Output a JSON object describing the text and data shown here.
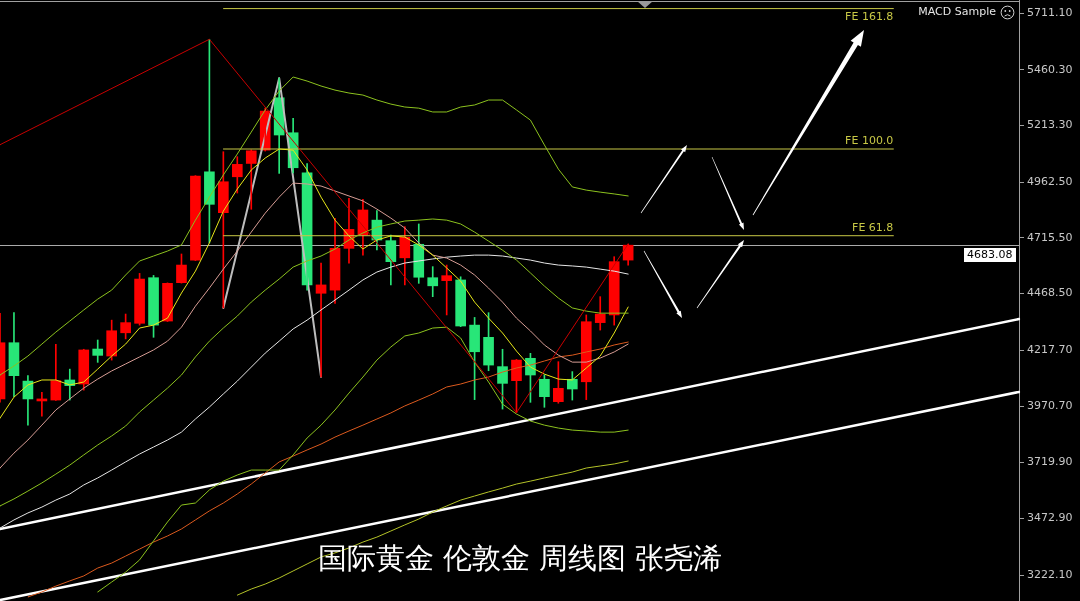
{
  "chart_data": {
    "type": "candlestick",
    "title": "国际黄金 伦敦金 周线图 张尧浠",
    "annotations": [
      "MACD Sample"
    ],
    "categories": [
      null,
      null,
      null,
      null,
      null,
      null,
      null,
      null,
      null,
      null,
      null,
      null,
      null,
      null,
      null,
      null,
      null,
      null,
      null,
      null,
      null,
      null,
      null,
      null,
      null,
      null,
      null,
      null,
      null,
      null,
      null,
      null,
      null,
      null,
      null,
      null,
      null,
      null,
      null,
      null,
      null,
      null,
      null,
      null,
      null,
      null,
      null,
      null,
      null,
      null,
      null,
      null,
      null,
      null,
      null,
      null,
      null,
      null,
      null,
      null,
      null,
      null,
      null,
      null,
      null,
      null,
      null,
      null,
      null,
      null,
      null,
      null,
      null,
      null
    ],
    "ohlc": [
      [
        4002,
        4381,
        3988,
        4251
      ],
      [
        4251,
        4384,
        4012,
        4105
      ],
      [
        4081,
        4106,
        3886,
        4002
      ],
      [
        3993,
        4031,
        3926,
        4002
      ],
      [
        3997,
        4244,
        3995,
        4083
      ],
      [
        4086,
        4134,
        3997,
        4061
      ],
      [
        4068,
        4222,
        4041,
        4219
      ],
      [
        4223,
        4263,
        4164,
        4195
      ],
      [
        4192,
        4351,
        4174,
        4304
      ],
      [
        4295,
        4378,
        4268,
        4340
      ],
      [
        4337,
        4558,
        4329,
        4533
      ],
      [
        4539,
        4549,
        4275,
        4329
      ],
      [
        4347,
        4516,
        4345,
        4514
      ],
      [
        4517,
        4644,
        4515,
        4595
      ],
      [
        4617,
        4991,
        4615,
        4989
      ],
      [
        5008,
        5595,
        4693,
        4864
      ],
      [
        4827,
        5097,
        4405,
        4964
      ],
      [
        4986,
        5075,
        4914,
        5041
      ],
      [
        5045,
        5105,
        4842,
        5101
      ],
      [
        5104,
        5290,
        5100,
        5277
      ],
      [
        5336,
        5423,
        5001,
        5171
      ],
      [
        5181,
        5245,
        5003,
        5026
      ],
      [
        5004,
        5045,
        4484,
        4507
      ],
      [
        4470,
        4604,
        4100,
        4507
      ],
      [
        4484,
        4802,
        4425,
        4669
      ],
      [
        4669,
        4890,
        4603,
        4753
      ],
      [
        4728,
        4886,
        4639,
        4839
      ],
      [
        4794,
        4836,
        4662,
        4706
      ],
      [
        4703,
        4728,
        4507,
        4610
      ],
      [
        4627,
        4765,
        4507,
        4718
      ],
      [
        4687,
        4777,
        4514,
        4541
      ],
      [
        4539,
        4588,
        4455,
        4503
      ],
      [
        4526,
        4595,
        4374,
        4548
      ],
      [
        4529,
        4543,
        4322,
        4325
      ],
      [
        4329,
        4363,
        3999,
        4211
      ],
      [
        4275,
        4384,
        4127,
        4152
      ],
      [
        4145,
        4222,
        3957,
        4071
      ],
      [
        4083,
        4177,
        3941,
        4174
      ],
      [
        4182,
        4204,
        3987,
        4108
      ],
      [
        4089,
        4108,
        3965,
        4012
      ],
      [
        3990,
        4167,
        3983,
        4049
      ],
      [
        4089,
        4123,
        3997,
        4046
      ],
      [
        4078,
        4374,
        3999,
        4344
      ],
      [
        4340,
        4455,
        4307,
        4378
      ],
      [
        4374,
        4632,
        4329,
        4610
      ],
      [
        4617,
        4688,
        4595,
        4683.08
      ],
      null,
      null,
      null,
      null,
      null,
      null,
      null,
      null,
      null,
      null,
      null,
      null,
      null,
      null,
      null,
      null,
      null,
      null,
      null,
      null,
      null,
      null,
      null,
      null,
      null,
      null,
      null,
      null
    ],
    "colors": [
      "#ff0000",
      "#28e678",
      "#28e678",
      "#ff0000",
      "#ff0000",
      "#28e678",
      "#ff0000",
      "#28e678",
      "#ff0000",
      "#ff0000",
      "#ff0000",
      "#28e678",
      "#ff0000",
      "#ff0000",
      "#ff0000",
      "#28e678",
      "#ff0000",
      "#ff0000",
      "#ff0000",
      "#ff0000",
      "#28e678",
      "#28e678",
      "#28e678",
      "#ff0000",
      "#ff0000",
      "#ff0000",
      "#ff0000",
      "#28e678",
      "#28e678",
      "#ff0000",
      "#28e678",
      "#28e678",
      "#ff0000",
      "#28e678",
      "#28e678",
      "#28e678",
      "#28e678",
      "#ff0000",
      "#28e678",
      "#28e678",
      "#ff0000",
      "#28e678",
      "#ff0000",
      "#ff0000",
      "#ff0000",
      "#ff0000",
      null,
      null,
      null,
      null,
      null,
      null,
      null,
      null,
      null,
      null,
      null,
      null,
      null,
      null,
      null,
      null,
      null,
      null,
      null,
      null,
      null,
      null,
      null,
      null,
      null,
      null,
      null,
      null
    ],
    "ylim": [
      3107,
      5769
    ],
    "yticks": [
      {
        "value": 5711.1,
        "label": "5711.10"
      },
      {
        "value": 5460.3,
        "label": "5460.30"
      },
      {
        "value": 5213.3,
        "label": "5213.30"
      },
      {
        "value": 4962.5,
        "label": "4962.50"
      },
      {
        "value": 4715.5,
        "label": "4715.50"
      },
      {
        "value": 4468.5,
        "label": "4468.50"
      },
      {
        "value": 4217.7,
        "label": "4217.70"
      },
      {
        "value": 3970.7,
        "label": "3970.70"
      },
      {
        "value": 3719.9,
        "label": "3719.90"
      },
      {
        "value": 3472.9,
        "label": "3472.90"
      },
      {
        "value": 3222.1,
        "label": "3222.10"
      }
    ],
    "tick_labels": "y",
    "grid": false,
    "legend": false,
    "ref_lines": [
      {
        "axis": "y",
        "value": 4683.08,
        "label": "4683.08",
        "color": "#aaaaaa"
      }
    ],
    "series": [
      {
        "type": "line",
        "color": "#c80000",
        "values": [
          5128,
          null,
          null,
          null,
          null,
          null,
          null,
          null,
          null,
          null,
          null,
          null,
          null,
          null,
          null,
          5595,
          null,
          null,
          null,
          null,
          null,
          null,
          null,
          null,
          null,
          null,
          null,
          null,
          null,
          null,
          null,
          null,
          null,
          null,
          null,
          null,
          null,
          3941,
          null,
          null,
          null,
          null,
          null,
          null,
          null,
          4688,
          null,
          null,
          null,
          null,
          null,
          null,
          null,
          null,
          null,
          null,
          null,
          null,
          null,
          null,
          null,
          null,
          null,
          null,
          null,
          null,
          null,
          null,
          null,
          null,
          null,
          null,
          null,
          null
        ]
      },
      {
        "type": "line",
        "color": "#bdbdbd",
        "values": [
          null,
          null,
          null,
          null,
          null,
          null,
          null,
          null,
          null,
          null,
          null,
          null,
          null,
          null,
          null,
          null,
          4405,
          null,
          null,
          null,
          5423,
          null,
          null,
          4100,
          null,
          null,
          null,
          null,
          null,
          null,
          null,
          null,
          null,
          null,
          null,
          null,
          null,
          null,
          null,
          null,
          null,
          null,
          null,
          null,
          null,
          null,
          null,
          null,
          null,
          null,
          null,
          null,
          null,
          null,
          null,
          null,
          null,
          null,
          null,
          null,
          null,
          null,
          null,
          null,
          null,
          null,
          null,
          null,
          null,
          null,
          null,
          null,
          null,
          null
        ]
      },
      {
        "type": "line",
        "color": "#8cc21e",
        "values": [
          4108,
          4148,
          4192,
          4245,
          4298,
          4347,
          4396,
          4444,
          4484,
          4551,
          4613,
          4635,
          4657,
          4684,
          4794,
          4896,
          4994,
          5087,
          5184,
          5282,
          5366,
          5428,
          5410,
          5388,
          5370,
          5357,
          5348,
          5326,
          5308,
          5295,
          5290,
          5273,
          5273,
          5295,
          5304,
          5326,
          5326,
          5282,
          5237,
          5127,
          5020,
          4941,
          4927,
          4918,
          4910,
          4901,
          null,
          null,
          null,
          null,
          null,
          null,
          null,
          null,
          null,
          null,
          null,
          null,
          null,
          null,
          null,
          null,
          null,
          null,
          null,
          null,
          null,
          null,
          null,
          null,
          null,
          null,
          null,
          null
        ]
      },
      {
        "type": "line",
        "color": "#8cc21e",
        "values": [
          3528,
          3559,
          3594,
          3630,
          3669,
          3709,
          3754,
          3798,
          3838,
          3882,
          3944,
          3997,
          4050,
          4108,
          4188,
          4258,
          4316,
          4369,
          4431,
          4484,
          4533,
          4586,
          4613,
          4635,
          4666,
          4706,
          4737,
          4763,
          4777,
          4790,
          4794,
          4799,
          4794,
          4777,
          4741,
          4701,
          4661,
          4617,
          4560,
          4502,
          4449,
          4405,
          4391,
          4382,
          4382,
          4382,
          null,
          null,
          null,
          null,
          null,
          null,
          null,
          null,
          null,
          null,
          null,
          null,
          null,
          null,
          null,
          null,
          null,
          null,
          null,
          null,
          null,
          null,
          null,
          null,
          null,
          null,
          null,
          null
        ]
      },
      {
        "type": "line",
        "color": "#8cc21e",
        "values": [
          null,
          null,
          null,
          null,
          null,
          null,
          null,
          3147,
          3191,
          3235,
          3289,
          3373,
          3457,
          3532,
          3541,
          3599,
          3638,
          3665,
          3687,
          3687,
          3687,
          3754,
          3829,
          3886,
          3953,
          4028,
          4099,
          4174,
          4232,
          4281,
          4294,
          4316,
          4320,
          4272,
          4165,
          4077,
          3979,
          3935,
          3904,
          3886,
          3873,
          3864,
          3860,
          3855,
          3855,
          3864,
          null,
          null,
          null,
          null,
          null,
          null,
          null,
          null,
          null,
          null,
          null,
          null,
          null,
          null,
          null,
          null,
          null,
          null,
          null,
          null,
          null,
          null,
          null,
          null,
          null,
          null,
          null,
          null
        ]
      },
      {
        "type": "line",
        "color": "#e6e619",
        "values": [
          3917,
          4010,
          4064,
          4086,
          4086,
          4064,
          4077,
          4134,
          4192,
          4245,
          4316,
          4329,
          4360,
          4471,
          4568,
          4693,
          4834,
          4932,
          5016,
          5069,
          5109,
          5104,
          5016,
          4896,
          4794,
          4724,
          4666,
          4706,
          4724,
          4719,
          4684,
          4639,
          4582,
          4524,
          4431,
          4360,
          4294,
          4214,
          4143,
          4112,
          4090,
          4086,
          4139,
          4192,
          4294,
          4409,
          null,
          null,
          null,
          null,
          null,
          null,
          null,
          null,
          null,
          null,
          null,
          null,
          null,
          null,
          null,
          null,
          null,
          null,
          null,
          null,
          null,
          null,
          null,
          null,
          null,
          null,
          null,
          null
        ]
      },
      {
        "type": "line",
        "color": "#d69c94",
        "values": [
          3696,
          3762,
          3820,
          3886,
          3953,
          4002,
          4050,
          4090,
          4126,
          4157,
          4188,
          4219,
          4258,
          4320,
          4413,
          4493,
          4577,
          4657,
          4741,
          4825,
          4896,
          4958,
          4954,
          4945,
          4923,
          4901,
          4879,
          4843,
          4803,
          4759,
          4693,
          4639,
          4626,
          4595,
          4551,
          4493,
          4431,
          4360,
          4303,
          4241,
          4196,
          4165,
          4165,
          4183,
          4210,
          4245,
          null,
          null,
          null,
          null,
          null,
          null,
          null,
          null,
          null,
          null,
          null,
          null,
          null,
          null,
          null,
          null,
          null,
          null,
          null,
          null,
          null,
          null,
          null,
          null,
          null,
          null,
          null,
          null
        ]
      },
      {
        "type": "line",
        "color": "#e6e6e6",
        "values": [
          3430,
          3466,
          3497,
          3523,
          3554,
          3581,
          3621,
          3652,
          3687,
          3723,
          3758,
          3789,
          3820,
          3855,
          3913,
          3966,
          4024,
          4081,
          4143,
          4205,
          4258,
          4312,
          4351,
          4396,
          4440,
          4484,
          4529,
          4564,
          4586,
          4604,
          4613,
          4622,
          4630,
          4635,
          4639,
          4639,
          4635,
          4626,
          4617,
          4604,
          4595,
          4591,
          4586,
          4577,
          4568,
          4555,
          null,
          null,
          null,
          null,
          null,
          null,
          null,
          null,
          null,
          null,
          null,
          null,
          null,
          null,
          null,
          null,
          null,
          null,
          null,
          null,
          null,
          null,
          null,
          null,
          null,
          null,
          null,
          null
        ]
      },
      {
        "type": "line",
        "color": "#dc5a1e",
        "values": [
          null,
          null,
          3125,
          3147,
          3173,
          3196,
          3218,
          3253,
          3275,
          3306,
          3337,
          3368,
          3395,
          3426,
          3466,
          3506,
          3541,
          3581,
          3625,
          3674,
          3723,
          3749,
          3776,
          3802,
          3833,
          3860,
          3886,
          3913,
          3940,
          3971,
          3997,
          4024,
          4055,
          4068,
          4086,
          4099,
          4121,
          4139,
          4152,
          4170,
          4188,
          4196,
          4210,
          4223,
          4241,
          4254,
          null,
          null,
          null,
          null,
          null,
          null,
          null,
          null,
          null,
          null,
          null,
          null,
          null,
          null,
          null,
          null,
          null,
          null,
          null,
          null,
          null,
          null,
          null,
          null,
          null,
          null,
          null,
          null
        ]
      },
      {
        "type": "line",
        "color": "#b4c328",
        "values": [
          null,
          null,
          null,
          null,
          null,
          null,
          null,
          null,
          null,
          null,
          null,
          null,
          null,
          null,
          null,
          null,
          null,
          3133,
          3160,
          3182,
          3209,
          3240,
          3271,
          3302,
          3320,
          3342,
          3368,
          3390,
          3417,
          3444,
          3470,
          3501,
          3528,
          3554,
          3572,
          3590,
          3607,
          3625,
          3638,
          3652,
          3665,
          3678,
          3696,
          3705,
          3714,
          3727,
          null,
          null,
          null,
          null,
          null,
          null,
          null,
          null,
          null,
          null,
          null,
          null,
          null,
          null,
          null,
          null,
          null,
          null,
          null,
          null,
          null,
          null,
          null,
          null,
          null,
          null,
          null,
          null
        ]
      },
      {
        "type": "line",
        "color": "#ffffff",
        "values": [
          3426,
          null,
          null,
          null,
          null,
          null,
          null,
          null,
          null,
          null,
          null,
          null,
          null,
          null,
          null,
          null,
          null,
          null,
          null,
          null,
          null,
          null,
          null,
          null,
          null,
          null,
          null,
          null,
          null,
          null,
          null,
          null,
          null,
          null,
          null,
          null,
          null,
          null,
          null,
          null,
          null,
          null,
          null,
          null,
          null,
          null,
          null,
          null,
          null,
          null,
          null,
          null,
          null,
          null,
          null,
          null,
          null,
          null,
          null,
          null,
          null,
          null,
          null,
          null,
          null,
          null,
          null,
          null,
          null,
          null,
          null,
          null,
          null,
          4356
        ]
      },
      {
        "type": "line",
        "color": "#ffffff",
        "values": [
          3111,
          null,
          null,
          null,
          null,
          null,
          null,
          null,
          null,
          null,
          null,
          null,
          null,
          null,
          null,
          null,
          null,
          null,
          null,
          null,
          null,
          null,
          null,
          null,
          null,
          null,
          null,
          null,
          null,
          null,
          null,
          null,
          null,
          null,
          null,
          null,
          null,
          null,
          null,
          null,
          null,
          null,
          null,
          null,
          null,
          null,
          null,
          null,
          null,
          null,
          null,
          null,
          null,
          null,
          null,
          null,
          null,
          null,
          null,
          null,
          null,
          null,
          null,
          null,
          null,
          null,
          null,
          null,
          null,
          null,
          null,
          null,
          null,
          4033
        ]
      },
      {
        "type": "line",
        "name": "FE 161.8",
        "color": "#c8c846",
        "values": [
          null,
          null,
          null,
          null,
          null,
          null,
          null,
          null,
          null,
          null,
          null,
          null,
          null,
          null,
          null,
          null,
          5731,
          null,
          null,
          null,
          null,
          null,
          null,
          null,
          null,
          null,
          null,
          null,
          null,
          null,
          null,
          null,
          null,
          null,
          null,
          null,
          null,
          null,
          null,
          null,
          null,
          null,
          null,
          null,
          null,
          null,
          null,
          null,
          null,
          null,
          null,
          null,
          null,
          null,
          null,
          null,
          null,
          null,
          null,
          null,
          null,
          null,
          null,
          null,
          5731,
          null,
          null,
          null,
          null,
          null,
          null,
          null,
          null,
          null
        ]
      },
      {
        "type": "line",
        "name": "FE 100.0",
        "color": "#c8c846",
        "values": [
          null,
          null,
          null,
          null,
          null,
          null,
          null,
          null,
          null,
          null,
          null,
          null,
          null,
          null,
          null,
          null,
          5109,
          null,
          null,
          null,
          null,
          null,
          null,
          null,
          null,
          null,
          null,
          null,
          null,
          null,
          null,
          null,
          null,
          null,
          null,
          null,
          null,
          null,
          null,
          null,
          null,
          null,
          null,
          null,
          null,
          null,
          null,
          null,
          null,
          null,
          null,
          null,
          null,
          null,
          null,
          null,
          null,
          null,
          null,
          null,
          null,
          null,
          null,
          null,
          5109,
          null,
          null,
          null,
          null,
          null,
          null,
          null,
          null,
          null
        ]
      },
      {
        "type": "line",
        "name": "FE 61.8",
        "color": "#c8c846",
        "values": [
          null,
          null,
          null,
          null,
          null,
          null,
          null,
          null,
          null,
          null,
          null,
          null,
          null,
          null,
          null,
          null,
          4725,
          null,
          null,
          null,
          null,
          null,
          null,
          null,
          null,
          null,
          null,
          null,
          null,
          null,
          null,
          null,
          null,
          null,
          null,
          null,
          null,
          null,
          null,
          null,
          null,
          null,
          null,
          null,
          null,
          null,
          null,
          null,
          null,
          null,
          null,
          null,
          null,
          null,
          null,
          null,
          null,
          null,
          null,
          null,
          null,
          null,
          null,
          null,
          4725,
          null,
          null,
          null,
          null,
          null,
          null,
          null,
          null,
          null
        ]
      }
    ]
  }
}
